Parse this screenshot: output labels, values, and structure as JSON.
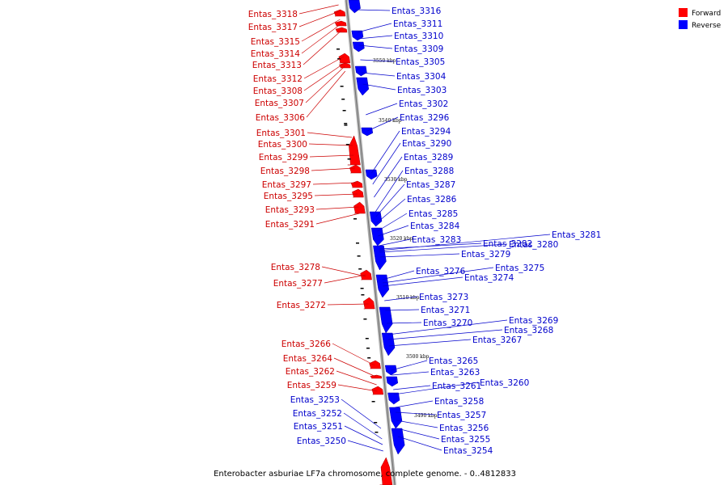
{
  "caption": "Enterobacter asburiae LF7a chromosome, complete genome. - 0..4812833",
  "legend": [
    {
      "label": "Forward",
      "color": "#ff0000"
    },
    {
      "label": "Reverse",
      "color": "#0000ff"
    }
  ],
  "colors": {
    "forward": "#ff0000",
    "reverse": "#0000ff",
    "label_forward": "#cc0000",
    "label_reverse": "#0000cc",
    "axis": "#999999"
  },
  "kbp_ticks": [
    "3550 kbp",
    "3540 kbp",
    "3530 kbp",
    "3520 kbp",
    "3510 kbp",
    "3500 kbp",
    "3490 kbp"
  ],
  "forward_genes": [
    "Entas_3318",
    "Entas_3317",
    "Entas_3315",
    "Entas_3314",
    "Entas_3313",
    "Entas_3312",
    "Entas_3308",
    "Entas_3307",
    "Entas_3306",
    "Entas_3301",
    "Entas_3300",
    "Entas_3299",
    "Entas_3298",
    "Entas_3297",
    "Entas_3295",
    "Entas_3293",
    "Entas_3291",
    "Entas_3278",
    "Entas_3277",
    "Entas_3272",
    "Entas_3266",
    "Entas_3264",
    "Entas_3262",
    "Entas_3259"
  ],
  "forward_label_groups": [
    "Entas_3253",
    "Entas_3252",
    "Entas_3251",
    "Entas_3250"
  ],
  "reverse_genes": [
    "Entas_3316",
    "Entas_3311",
    "Entas_3310",
    "Entas_3309",
    "Entas_3305",
    "Entas_3304",
    "Entas_3303",
    "Entas_3302",
    "Entas_3296",
    "Entas_3294",
    "Entas_3290",
    "Entas_3289",
    "Entas_3288",
    "Entas_3287",
    "Entas_3286",
    "Entas_3285",
    "Entas_3284",
    "Entas_3283",
    "Entas_3282",
    "Entas_3281",
    "Entas_3280",
    "Entas_3279",
    "Entas_3276",
    "Entas_3275",
    "Entas_3274",
    "Entas_3273",
    "Entas_3271",
    "Entas_3270",
    "Entas_3269",
    "Entas_3268",
    "Entas_3267",
    "Entas_3265",
    "Entas_3263",
    "Entas_3261",
    "Entas_3260",
    "Entas_3258",
    "Entas_3257",
    "Entas_3256",
    "Entas_3255",
    "Entas_3254"
  ]
}
